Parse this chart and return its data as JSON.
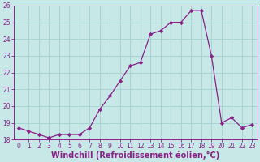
{
  "x": [
    0,
    1,
    2,
    3,
    4,
    5,
    6,
    7,
    8,
    9,
    10,
    11,
    12,
    13,
    14,
    15,
    16,
    17,
    18,
    19,
    20,
    21,
    22,
    23
  ],
  "y": [
    18.7,
    18.5,
    18.3,
    18.1,
    18.3,
    18.3,
    18.3,
    18.7,
    19.8,
    20.6,
    21.5,
    22.4,
    22.6,
    24.3,
    24.5,
    25.0,
    25.0,
    25.7,
    25.7,
    23.0,
    19.0,
    19.3,
    18.7,
    18.9
  ],
  "line_color": "#882288",
  "marker": "D",
  "marker_size": 2.2,
  "bg_color": "#c8e8e8",
  "grid_color": "#a8d4d4",
  "xlabel": "Windchill (Refroidissement éolien,°C)",
  "xlabel_color": "#882288",
  "ylim": [
    18,
    26
  ],
  "xlim_min": -0.5,
  "xlim_max": 23.5,
  "yticks": [
    18,
    19,
    20,
    21,
    22,
    23,
    24,
    25,
    26
  ],
  "xticks": [
    0,
    1,
    2,
    3,
    4,
    5,
    6,
    7,
    8,
    9,
    10,
    11,
    12,
    13,
    14,
    15,
    16,
    17,
    18,
    19,
    20,
    21,
    22,
    23
  ],
  "tick_color": "#882288",
  "tick_fontsize": 5.5,
  "xlabel_fontsize": 7.0
}
